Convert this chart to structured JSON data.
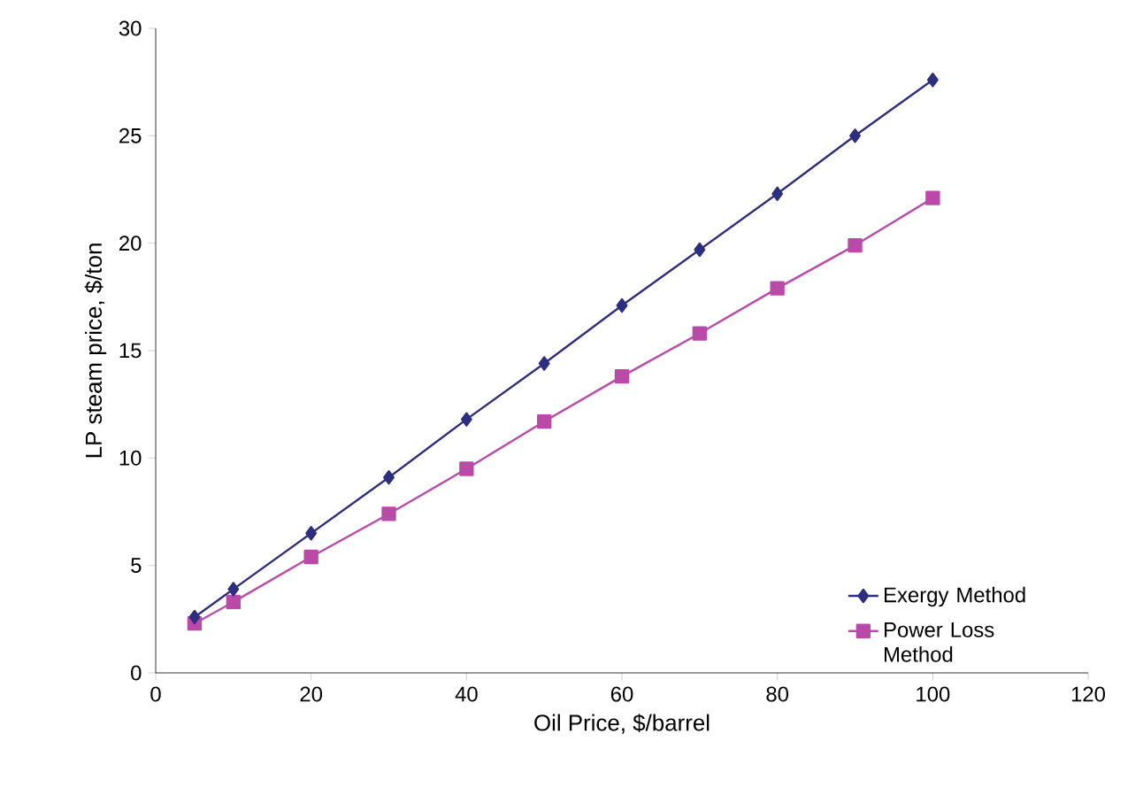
{
  "chart_data": {
    "type": "line",
    "xlabel": "Oil Price, $/barrel",
    "ylabel": "LP steam price, $/ton",
    "x": [
      5,
      10,
      20,
      30,
      40,
      50,
      60,
      70,
      80,
      90,
      100
    ],
    "series": [
      {
        "name": "Exergy Method",
        "color": "#2e2e80",
        "marker": "diamond",
        "values": [
          2.6,
          3.9,
          6.5,
          9.1,
          11.8,
          14.4,
          17.1,
          19.7,
          22.3,
          25.0,
          27.6
        ]
      },
      {
        "name": "Power Loss Method",
        "color": "#b94aa8",
        "marker": "square",
        "values": [
          2.3,
          3.3,
          5.4,
          7.4,
          9.5,
          11.7,
          13.8,
          15.8,
          17.9,
          19.9,
          22.1
        ]
      }
    ],
    "xlim": [
      0,
      120
    ],
    "xticks": [
      0,
      20,
      40,
      60,
      80,
      100,
      120
    ],
    "ylim": [
      0,
      30
    ],
    "yticks": [
      0,
      5,
      10,
      15,
      20,
      25,
      30
    ],
    "legend": "bottom right",
    "grid": false,
    "line_style": "solid"
  }
}
